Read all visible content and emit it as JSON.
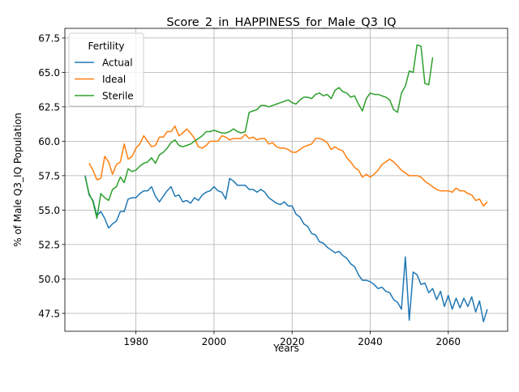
{
  "chart_data": {
    "type": "line",
    "title": "Score_2_in_HAPPINESS_for_Male_Q3_IQ",
    "xlabel": "Years",
    "ylabel": "% of Male Q3_IQ Population",
    "xlim": [
      1961.8,
      2075.2
    ],
    "ylim": [
      46.2,
      68.2
    ],
    "xticks": [
      1980,
      2000,
      2020,
      2040,
      2060
    ],
    "yticks": [
      47.5,
      50.0,
      52.5,
      55.0,
      57.5,
      60.0,
      62.5,
      65.0,
      67.5
    ],
    "grid": true,
    "legend": {
      "title": "Fertility",
      "placement": "top-left"
    },
    "series": [
      {
        "name": "Actual",
        "color": "#1f77b4",
        "points": [
          [
            1967,
            57.5
          ],
          [
            1968,
            56.1
          ],
          [
            1969,
            55.7
          ],
          [
            1970,
            54.6
          ],
          [
            1971,
            54.9
          ],
          [
            1972,
            54.4
          ],
          [
            1973,
            53.7
          ],
          [
            1974,
            54.0
          ],
          [
            1975,
            54.2
          ],
          [
            1976,
            54.9
          ],
          [
            1977,
            54.9
          ],
          [
            1978,
            55.8
          ],
          [
            1979,
            55.9
          ],
          [
            1980,
            55.9
          ],
          [
            1981,
            56.2
          ],
          [
            1982,
            56.4
          ],
          [
            1983,
            56.4
          ],
          [
            1984,
            56.7
          ],
          [
            1985,
            56.0
          ],
          [
            1986,
            55.6
          ],
          [
            1987,
            56.0
          ],
          [
            1988,
            56.4
          ],
          [
            1989,
            56.7
          ],
          [
            1990,
            56.0
          ],
          [
            1991,
            56.1
          ],
          [
            1992,
            55.6
          ],
          [
            1993,
            55.7
          ],
          [
            1994,
            55.5
          ],
          [
            1995,
            55.9
          ],
          [
            1996,
            55.7
          ],
          [
            1997,
            56.1
          ],
          [
            1998,
            56.3
          ],
          [
            1999,
            56.4
          ],
          [
            2000,
            56.7
          ],
          [
            2001,
            56.4
          ],
          [
            2002,
            56.3
          ],
          [
            2003,
            55.8
          ],
          [
            2004,
            57.3
          ],
          [
            2005,
            57.1
          ],
          [
            2006,
            56.8
          ],
          [
            2007,
            56.8
          ],
          [
            2008,
            56.8
          ],
          [
            2009,
            56.5
          ],
          [
            2010,
            56.5
          ],
          [
            2011,
            56.3
          ],
          [
            2012,
            56.5
          ],
          [
            2013,
            56.3
          ],
          [
            2014,
            55.9
          ],
          [
            2015,
            55.7
          ],
          [
            2016,
            55.5
          ],
          [
            2017,
            55.4
          ],
          [
            2018,
            55.6
          ],
          [
            2019,
            55.3
          ],
          [
            2020,
            55.3
          ],
          [
            2021,
            54.7
          ],
          [
            2022,
            54.5
          ],
          [
            2023,
            54.0
          ],
          [
            2024,
            53.8
          ],
          [
            2025,
            53.3
          ],
          [
            2026,
            53.2
          ],
          [
            2027,
            52.7
          ],
          [
            2028,
            52.6
          ],
          [
            2029,
            52.3
          ],
          [
            2030,
            52.1
          ],
          [
            2031,
            51.9
          ],
          [
            2032,
            52.0
          ],
          [
            2033,
            51.7
          ],
          [
            2034,
            51.5
          ],
          [
            2035,
            51.1
          ],
          [
            2036,
            50.9
          ],
          [
            2037,
            50.3
          ],
          [
            2038,
            49.9
          ],
          [
            2039,
            49.9
          ],
          [
            2040,
            49.8
          ],
          [
            2041,
            49.6
          ],
          [
            2042,
            49.3
          ],
          [
            2043,
            49.4
          ],
          [
            2044,
            49.1
          ],
          [
            2045,
            49.0
          ],
          [
            2046,
            48.5
          ],
          [
            2047,
            48.3
          ],
          [
            2048,
            47.8
          ],
          [
            2049,
            51.6
          ],
          [
            2050,
            47.0
          ],
          [
            2051,
            50.5
          ],
          [
            2052,
            50.3
          ],
          [
            2053,
            49.6
          ],
          [
            2054,
            49.7
          ],
          [
            2055,
            49.0
          ],
          [
            2056,
            49.3
          ],
          [
            2057,
            48.5
          ],
          [
            2058,
            49.1
          ],
          [
            2059,
            48.0
          ],
          [
            2060,
            48.8
          ],
          [
            2061,
            47.8
          ],
          [
            2062,
            48.6
          ],
          [
            2063,
            47.9
          ],
          [
            2064,
            48.6
          ],
          [
            2065,
            48.0
          ],
          [
            2066,
            48.7
          ],
          [
            2067,
            47.6
          ],
          [
            2068,
            48.4
          ],
          [
            2069,
            46.9
          ],
          [
            2070,
            47.8
          ]
        ]
      },
      {
        "name": "Ideal",
        "color": "#ff7f0e",
        "points": [
          [
            1968,
            58.4
          ],
          [
            1969,
            57.9
          ],
          [
            1970,
            57.2
          ],
          [
            1971,
            57.3
          ],
          [
            1972,
            58.9
          ],
          [
            1973,
            58.5
          ],
          [
            1974,
            57.6
          ],
          [
            1975,
            58.3
          ],
          [
            1976,
            58.5
          ],
          [
            1977,
            59.8
          ],
          [
            1978,
            58.7
          ],
          [
            1979,
            58.9
          ],
          [
            1980,
            59.5
          ],
          [
            1981,
            59.8
          ],
          [
            1982,
            60.4
          ],
          [
            1983,
            60.0
          ],
          [
            1984,
            59.6
          ],
          [
            1985,
            59.7
          ],
          [
            1986,
            60.3
          ],
          [
            1987,
            60.3
          ],
          [
            1988,
            60.7
          ],
          [
            1989,
            60.7
          ],
          [
            1990,
            61.1
          ],
          [
            1991,
            60.4
          ],
          [
            1992,
            60.6
          ],
          [
            1993,
            60.9
          ],
          [
            1994,
            60.6
          ],
          [
            1995,
            60.2
          ],
          [
            1996,
            59.6
          ],
          [
            1997,
            59.5
          ],
          [
            1998,
            59.7
          ],
          [
            1999,
            60.0
          ],
          [
            2000,
            60.0
          ],
          [
            2001,
            60.0
          ],
          [
            2002,
            60.4
          ],
          [
            2003,
            60.3
          ],
          [
            2004,
            60.1
          ],
          [
            2005,
            60.2
          ],
          [
            2006,
            60.2
          ],
          [
            2007,
            60.2
          ],
          [
            2008,
            60.5
          ],
          [
            2009,
            60.2
          ],
          [
            2010,
            60.3
          ],
          [
            2011,
            60.1
          ],
          [
            2012,
            60.2
          ],
          [
            2013,
            60.2
          ],
          [
            2014,
            59.8
          ],
          [
            2015,
            59.9
          ],
          [
            2016,
            59.6
          ],
          [
            2017,
            59.5
          ],
          [
            2018,
            59.5
          ],
          [
            2019,
            59.4
          ],
          [
            2020,
            59.2
          ],
          [
            2021,
            59.2
          ],
          [
            2022,
            59.4
          ],
          [
            2023,
            59.6
          ],
          [
            2024,
            59.7
          ],
          [
            2025,
            59.8
          ],
          [
            2026,
            60.2
          ],
          [
            2027,
            60.2
          ],
          [
            2028,
            60.1
          ],
          [
            2029,
            59.9
          ],
          [
            2030,
            59.4
          ],
          [
            2031,
            59.6
          ],
          [
            2032,
            59.4
          ],
          [
            2033,
            59.3
          ],
          [
            2034,
            58.8
          ],
          [
            2035,
            58.5
          ],
          [
            2036,
            58.1
          ],
          [
            2037,
            57.9
          ],
          [
            2038,
            57.4
          ],
          [
            2039,
            57.6
          ],
          [
            2040,
            57.4
          ],
          [
            2041,
            57.6
          ],
          [
            2042,
            57.9
          ],
          [
            2043,
            58.3
          ],
          [
            2044,
            58.5
          ],
          [
            2045,
            58.7
          ],
          [
            2046,
            58.5
          ],
          [
            2047,
            58.2
          ],
          [
            2048,
            57.9
          ],
          [
            2049,
            57.7
          ],
          [
            2050,
            57.5
          ],
          [
            2051,
            57.5
          ],
          [
            2052,
            57.5
          ],
          [
            2053,
            57.4
          ],
          [
            2054,
            57.1
          ],
          [
            2055,
            56.9
          ],
          [
            2056,
            56.7
          ],
          [
            2057,
            56.5
          ],
          [
            2058,
            56.4
          ],
          [
            2059,
            56.4
          ],
          [
            2060,
            56.4
          ],
          [
            2061,
            56.3
          ],
          [
            2062,
            56.6
          ],
          [
            2063,
            56.4
          ],
          [
            2064,
            56.4
          ],
          [
            2065,
            56.2
          ],
          [
            2066,
            56.1
          ],
          [
            2067,
            55.7
          ],
          [
            2068,
            55.8
          ],
          [
            2069,
            55.3
          ],
          [
            2070,
            55.6
          ]
        ]
      },
      {
        "name": "Sterile",
        "color": "#2ca02c",
        "points": [
          [
            1967,
            57.4
          ],
          [
            1968,
            56.2
          ],
          [
            1969,
            55.6
          ],
          [
            1970,
            54.4
          ],
          [
            1971,
            56.2
          ],
          [
            1972,
            55.9
          ],
          [
            1973,
            55.7
          ],
          [
            1974,
            56.5
          ],
          [
            1975,
            56.7
          ],
          [
            1976,
            57.4
          ],
          [
            1977,
            57.0
          ],
          [
            1978,
            58.0
          ],
          [
            1979,
            57.8
          ],
          [
            1980,
            57.9
          ],
          [
            1981,
            58.2
          ],
          [
            1982,
            58.4
          ],
          [
            1983,
            58.5
          ],
          [
            1984,
            58.8
          ],
          [
            1985,
            58.4
          ],
          [
            1986,
            59.0
          ],
          [
            1987,
            59.2
          ],
          [
            1988,
            59.5
          ],
          [
            1989,
            59.9
          ],
          [
            1990,
            60.1
          ],
          [
            1991,
            59.7
          ],
          [
            1992,
            59.6
          ],
          [
            1993,
            59.7
          ],
          [
            1994,
            59.8
          ],
          [
            1995,
            60.0
          ],
          [
            1996,
            60.2
          ],
          [
            1997,
            60.4
          ],
          [
            1998,
            60.7
          ],
          [
            1999,
            60.7
          ],
          [
            2000,
            60.8
          ],
          [
            2001,
            60.7
          ],
          [
            2002,
            60.6
          ],
          [
            2003,
            60.6
          ],
          [
            2004,
            60.7
          ],
          [
            2005,
            60.9
          ],
          [
            2006,
            60.7
          ],
          [
            2007,
            60.6
          ],
          [
            2008,
            60.7
          ],
          [
            2009,
            62.1
          ],
          [
            2010,
            62.2
          ],
          [
            2011,
            62.3
          ],
          [
            2012,
            62.6
          ],
          [
            2013,
            62.6
          ],
          [
            2014,
            62.5
          ],
          [
            2015,
            62.6
          ],
          [
            2016,
            62.7
          ],
          [
            2017,
            62.8
          ],
          [
            2018,
            62.9
          ],
          [
            2019,
            63.0
          ],
          [
            2020,
            62.8
          ],
          [
            2021,
            62.7
          ],
          [
            2022,
            63.0
          ],
          [
            2023,
            63.2
          ],
          [
            2024,
            63.2
          ],
          [
            2025,
            63.1
          ],
          [
            2026,
            63.4
          ],
          [
            2027,
            63.5
          ],
          [
            2028,
            63.3
          ],
          [
            2029,
            63.4
          ],
          [
            2030,
            63.1
          ],
          [
            2031,
            63.7
          ],
          [
            2032,
            63.9
          ],
          [
            2033,
            63.6
          ],
          [
            2034,
            63.5
          ],
          [
            2035,
            63.2
          ],
          [
            2036,
            63.3
          ],
          [
            2037,
            62.7
          ],
          [
            2038,
            62.2
          ],
          [
            2039,
            63.1
          ],
          [
            2040,
            63.5
          ],
          [
            2041,
            63.4
          ],
          [
            2042,
            63.4
          ],
          [
            2043,
            63.3
          ],
          [
            2044,
            63.2
          ],
          [
            2045,
            63.0
          ],
          [
            2046,
            62.3
          ],
          [
            2047,
            62.1
          ],
          [
            2048,
            63.5
          ],
          [
            2049,
            64.0
          ],
          [
            2050,
            65.1
          ],
          [
            2051,
            65.0
          ],
          [
            2052,
            67.0
          ],
          [
            2053,
            66.9
          ],
          [
            2054,
            64.2
          ],
          [
            2055,
            64.1
          ],
          [
            2056,
            66.1
          ]
        ]
      }
    ]
  }
}
